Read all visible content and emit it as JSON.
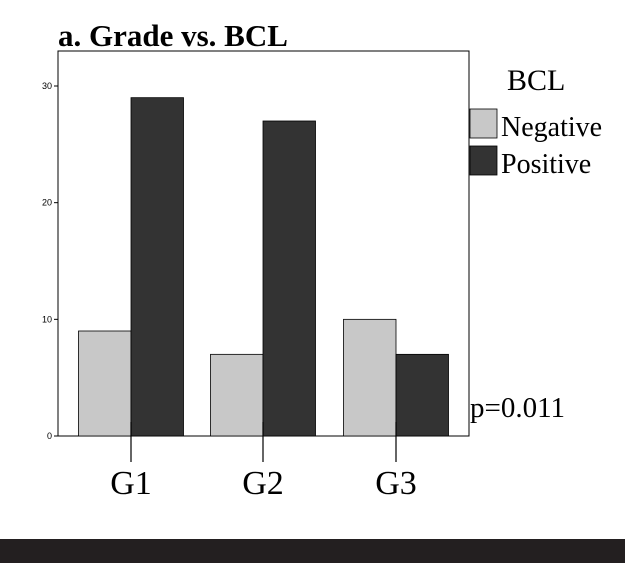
{
  "chart_data": {
    "type": "bar",
    "title": "a. Grade vs. BCL",
    "categories": [
      "G1",
      "G2",
      "G3"
    ],
    "series": [
      {
        "name": "Negative",
        "values": [
          9,
          7,
          10
        ],
        "color": "#c8c8c8"
      },
      {
        "name": "Positive",
        "values": [
          29,
          27,
          7
        ],
        "color": "#333333"
      }
    ],
    "legend_title": "BCL",
    "legend_position": "top-right, outside plot",
    "ylim": [
      0,
      33
    ],
    "yticks": [
      "0",
      "10",
      "20",
      "30"
    ],
    "xlabel": "",
    "ylabel": "",
    "grid": false,
    "annotation": "p=0.011",
    "axis_color": "#000000",
    "footer_band_color": "#231f20"
  }
}
